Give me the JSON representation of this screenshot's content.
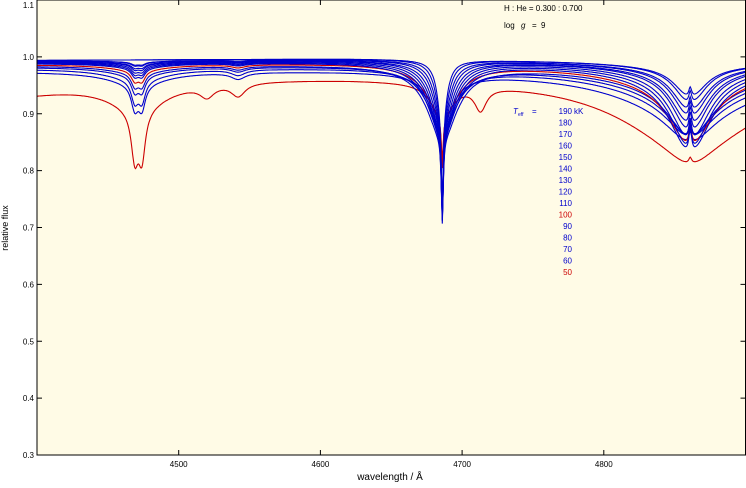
{
  "chart_data": {
    "type": "line",
    "xlabel": "wavelength / Å",
    "ylabel": "relative flux",
    "xlim": [
      4400,
      4900
    ],
    "ylim": [
      0.3,
      1.1
    ],
    "xticks": [
      4500,
      4600,
      4700,
      4800
    ],
    "yticks": [
      0.3,
      0.4,
      0.5,
      0.6,
      0.7,
      0.8,
      0.9,
      1.0,
      1.1
    ],
    "xtick_labels": [
      "4500",
      "4600",
      "4700",
      "4800"
    ],
    "ytick_labels": [
      "0.3",
      "0.4",
      "0.5",
      "0.6",
      "0.7",
      "0.8",
      "0.9",
      "1.0",
      "1.1"
    ],
    "grid": false,
    "background_color": "#fffbe6",
    "annotations": {
      "abundance": "H : He = 0.300 : 0.700",
      "logg_prefix": "log",
      "logg_symbol": "g",
      "logg_eq": "=",
      "logg_value": "9",
      "teff_symbol": "T",
      "teff_subscript": "eff",
      "teff_eq": "=",
      "teff_unit": "kK"
    },
    "legend_placement": "upper-center-right",
    "series": [
      {
        "name": "190",
        "color": "#0000cc",
        "c": 0.997,
        "d4686": 0.2,
        "w4686": 4,
        "core4686": 1,
        "w4471": 0,
        "wHb": 0.012,
        "d4859": 0.05,
        "w4859": 12,
        "bump": 0.0
      },
      {
        "name": "180",
        "color": "#0000cc",
        "c": 0.997,
        "d4686": 0.21,
        "w4686": 5,
        "core4686": 1,
        "w4471": 0,
        "wHb": 0.012,
        "d4859": 0.06,
        "w4859": 12,
        "bump": 0.0
      },
      {
        "name": "170",
        "color": "#0000cc",
        "c": 0.996,
        "d4686": 0.22,
        "w4686": 6,
        "core4686": 1,
        "w4471": 0.005,
        "wHb": 0.014,
        "d4859": 0.07,
        "w4859": 13,
        "bump": 0.0
      },
      {
        "name": "160",
        "color": "#0000cc",
        "c": 0.996,
        "d4686": 0.23,
        "w4686": 7,
        "core4686": 1,
        "w4471": 0.006,
        "wHb": 0.015,
        "d4859": 0.08,
        "w4859": 13,
        "bump": 0.0
      },
      {
        "name": "150",
        "color": "#0000cc",
        "c": 0.995,
        "d4686": 0.24,
        "w4686": 8,
        "core4686": 1,
        "w4471": 0.008,
        "wHb": 0.016,
        "d4859": 0.09,
        "w4859": 14,
        "bump": 0.0
      },
      {
        "name": "140",
        "color": "#0000cc",
        "c": 0.995,
        "d4686": 0.25,
        "w4686": 9,
        "core4686": 1,
        "w4471": 0.01,
        "wHb": 0.018,
        "d4859": 0.1,
        "w4859": 14,
        "bump": 0.0
      },
      {
        "name": "130",
        "color": "#0000cc",
        "c": 0.994,
        "d4686": 0.25,
        "w4686": 10,
        "core4686": 1,
        "w4471": 0.012,
        "wHb": 0.02,
        "d4859": 0.11,
        "w4859": 15,
        "bump": 0.0
      },
      {
        "name": "120",
        "color": "#0000cc",
        "c": 0.993,
        "d4686": 0.25,
        "w4686": 11,
        "core4686": 1,
        "w4471": 0.014,
        "wHb": 0.024,
        "d4859": 0.12,
        "w4859": 15,
        "bump": 0.0
      },
      {
        "name": "110",
        "color": "#0000cc",
        "c": 0.992,
        "d4686": 0.25,
        "w4686": 12,
        "core4686": 1,
        "w4471": 0.016,
        "wHb": 0.028,
        "d4859": 0.12,
        "w4859": 16,
        "bump": 0.0
      },
      {
        "name": "100",
        "color": "#cc0000",
        "c": 0.99,
        "d4686": 0.18,
        "w4686": 13,
        "core4686": 0.6,
        "w4471": 0.02,
        "wHb": 0.034,
        "d4859": 0.1,
        "w4859": 17,
        "bump": 0.0
      },
      {
        "name": "90",
        "color": "#0000cc",
        "c": 0.988,
        "d4686": 0.25,
        "w4686": 13,
        "core4686": 1,
        "w4471": 0.025,
        "wHb": 0.04,
        "d4859": 0.08,
        "w4859": 17,
        "bump": 0.0
      },
      {
        "name": "80",
        "color": "#0000cc",
        "c": 0.986,
        "d4686": 0.22,
        "w4686": 12,
        "core4686": 1,
        "w4471": 0.03,
        "wHb": 0.048,
        "d4859": 0.07,
        "w4859": 17,
        "bump": 0.0
      },
      {
        "name": "70",
        "color": "#0000cc",
        "c": 0.983,
        "d4686": 0.2,
        "w4686": 11,
        "core4686": 1,
        "w4471": 0.04,
        "wHb": 0.056,
        "d4859": 0.06,
        "w4859": 18,
        "bump": 0.0
      },
      {
        "name": "60",
        "color": "#0000cc",
        "c": 0.978,
        "d4686": 0.16,
        "w4686": 10,
        "core4686": 1,
        "w4471": 0.045,
        "wHb": 0.07,
        "d4859": 0.05,
        "w4859": 18,
        "bump": 0.0
      },
      {
        "name": "50",
        "color": "#cc0000",
        "c": 0.97,
        "d4686": 0.12,
        "w4686": 9,
        "core4686": 0.5,
        "w4471": 0.09,
        "wHb": 0.12,
        "d4859": 0.03,
        "w4859": 18,
        "bump": 1
      }
    ]
  }
}
